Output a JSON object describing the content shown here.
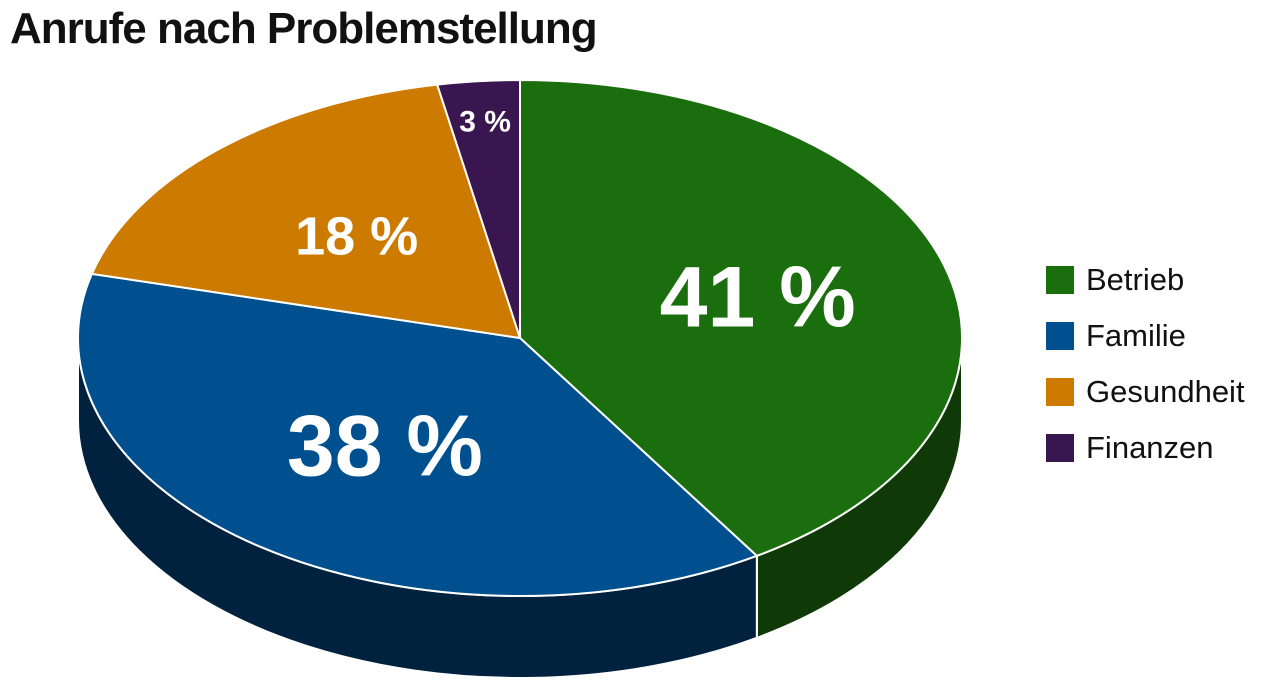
{
  "chart_data": {
    "type": "pie",
    "title": "Anrufe nach Problemstellung",
    "slices": [
      {
        "name": "Betrieb",
        "value": 41,
        "label": "41 %",
        "color": "#1b6e0d",
        "side_color": "#0f3a07"
      },
      {
        "name": "Familie",
        "value": 38,
        "label": "38 %",
        "color": "#00508f",
        "side_color": "#00223f"
      },
      {
        "name": "Gesundheit",
        "value": 18,
        "label": "18 %",
        "color": "#cc7a00",
        "side_color": "#6e4200"
      },
      {
        "name": "Finanzen",
        "value": 3,
        "label": "3 %",
        "color": "#3a1650",
        "side_color": "#1e0a2a"
      }
    ],
    "legend": {
      "placement": "right",
      "items": [
        "Betrieb",
        "Familie",
        "Gesundheit",
        "Finanzen"
      ]
    },
    "three_d": true
  }
}
